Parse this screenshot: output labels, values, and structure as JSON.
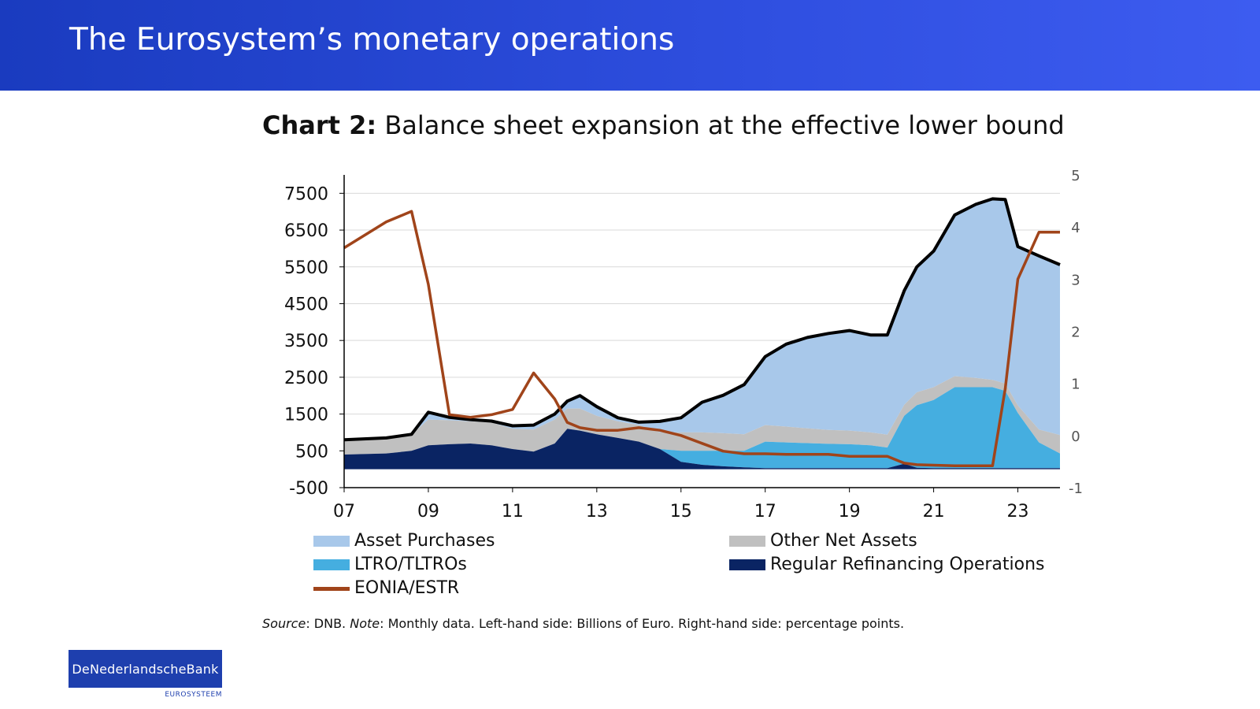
{
  "header": {
    "title": "The Eurosystem’s monetary operations"
  },
  "chart_title": {
    "bold": "Chart 2:",
    "rest": " Balance sheet expansion at the effective lower bound"
  },
  "source": {
    "source_label": "Source",
    "source_text": ": DNB. ",
    "note_label": "Note",
    "note_text": ": Monthly data. Left-hand side: Billions of Euro. Right-hand side: percentage points."
  },
  "logo": {
    "main": "DeNederlandscheBank",
    "sub": "EUROSYSTEEM"
  },
  "colors": {
    "asset_purchases": "#a8c8ea",
    "other_net_assets": "#c0c0c0",
    "ltro": "#45aee0",
    "mro": "#0a2463",
    "total": "#000000",
    "eonia": "#a0441a",
    "header": "#2b4ad8"
  },
  "chart_data": {
    "type": "area",
    "x_ticks": [
      "07",
      "09",
      "11",
      "13",
      "15",
      "17",
      "19",
      "21",
      "23"
    ],
    "x_tick_years": [
      2007,
      2009,
      2011,
      2013,
      2015,
      2017,
      2019,
      2021,
      2023
    ],
    "x_range": [
      2007,
      2024
    ],
    "ylim_left": [
      -500,
      8000
    ],
    "y_ticks_left": [
      7500,
      6500,
      5500,
      4500,
      3500,
      2500,
      1500,
      500,
      -500
    ],
    "ylim_right": [
      -1,
      5
    ],
    "y_ticks_right": [
      5,
      4,
      3,
      2,
      1,
      0,
      -1
    ],
    "legend": [
      {
        "name": "Asset Purchases",
        "type": "area",
        "color": "#a8c8ea"
      },
      {
        "name": "Other Net Assets",
        "type": "area",
        "color": "#c0c0c0"
      },
      {
        "name": "LTRO/TLTROs",
        "type": "area",
        "color": "#45aee0"
      },
      {
        "name": "Regular Refinancing Operations",
        "type": "area",
        "color": "#0a2463"
      },
      {
        "name": "EONIA/ESTR",
        "type": "line",
        "color": "#a0441a"
      }
    ],
    "x": [
      2007.0,
      2008.0,
      2008.6,
      2009.0,
      2009.5,
      2010.0,
      2010.5,
      2011.0,
      2011.5,
      2012.0,
      2012.3,
      2012.6,
      2013.0,
      2013.5,
      2014.0,
      2014.5,
      2015.0,
      2015.5,
      2016.0,
      2016.5,
      2017.0,
      2017.5,
      2018.0,
      2018.5,
      2019.0,
      2019.5,
      2019.9,
      2020.3,
      2020.6,
      2021.0,
      2021.5,
      2022.0,
      2022.4,
      2022.7,
      2023.0,
      2023.5,
      2024.0
    ],
    "series": [
      {
        "name": "Regular Refinancing Operations",
        "values": [
          400,
          430,
          500,
          650,
          680,
          700,
          650,
          550,
          480,
          700,
          1100,
          1050,
          950,
          850,
          750,
          550,
          200,
          120,
          80,
          50,
          30,
          30,
          30,
          30,
          30,
          30,
          30,
          150,
          40,
          30,
          30,
          30,
          30,
          30,
          30,
          30,
          30
        ]
      },
      {
        "name": "LTRO/TLTROs",
        "values": [
          0,
          0,
          0,
          0,
          0,
          0,
          0,
          0,
          0,
          0,
          0,
          0,
          0,
          0,
          0,
          0,
          300,
          380,
          420,
          450,
          720,
          700,
          680,
          660,
          650,
          620,
          560,
          1300,
          1700,
          1850,
          2200,
          2200,
          2200,
          2100,
          1500,
          700,
          400
        ]
      },
      {
        "name": "Other Net Assets",
        "values": [
          400,
          420,
          450,
          700,
          650,
          600,
          620,
          550,
          600,
          650,
          550,
          600,
          500,
          450,
          450,
          450,
          500,
          500,
          480,
          450,
          450,
          430,
          400,
          380,
          370,
          350,
          350,
          300,
          350,
          350,
          300,
          250,
          200,
          200,
          200,
          350,
          500
        ]
      },
      {
        "name": "Asset Purchases",
        "values": [
          0,
          0,
          0,
          200,
          80,
          50,
          40,
          80,
          120,
          150,
          200,
          350,
          250,
          100,
          80,
          300,
          400,
          820,
          1030,
          1350,
          1860,
          2240,
          2470,
          2620,
          2720,
          2650,
          2710,
          3100,
          3410,
          3700,
          4380,
          4720,
          4920,
          5000,
          4320,
          4720,
          4630
        ]
      },
      {
        "name": "Total",
        "values": [
          800,
          850,
          950,
          1550,
          1410,
          1350,
          1310,
          1180,
          1200,
          1500,
          1850,
          2000,
          1700,
          1400,
          1280,
          1300,
          1400,
          1820,
          2010,
          2300,
          3060,
          3400,
          3580,
          3690,
          3770,
          3650,
          3650,
          4850,
          5500,
          5930,
          6910,
          7200,
          7350,
          7330,
          6050,
          5800,
          5560
        ]
      },
      {
        "name": "EONIA/ESTR",
        "axis": "right",
        "values": [
          3.6,
          4.1,
          4.3,
          2.9,
          0.4,
          0.35,
          0.4,
          0.5,
          1.2,
          0.7,
          0.25,
          0.15,
          0.1,
          0.1,
          0.15,
          0.1,
          0.0,
          -0.15,
          -0.3,
          -0.35,
          -0.35,
          -0.36,
          -0.36,
          -0.36,
          -0.4,
          -0.4,
          -0.4,
          -0.53,
          -0.56,
          -0.57,
          -0.58,
          -0.58,
          -0.58,
          0.9,
          3.0,
          3.9,
          3.9
        ]
      }
    ]
  }
}
